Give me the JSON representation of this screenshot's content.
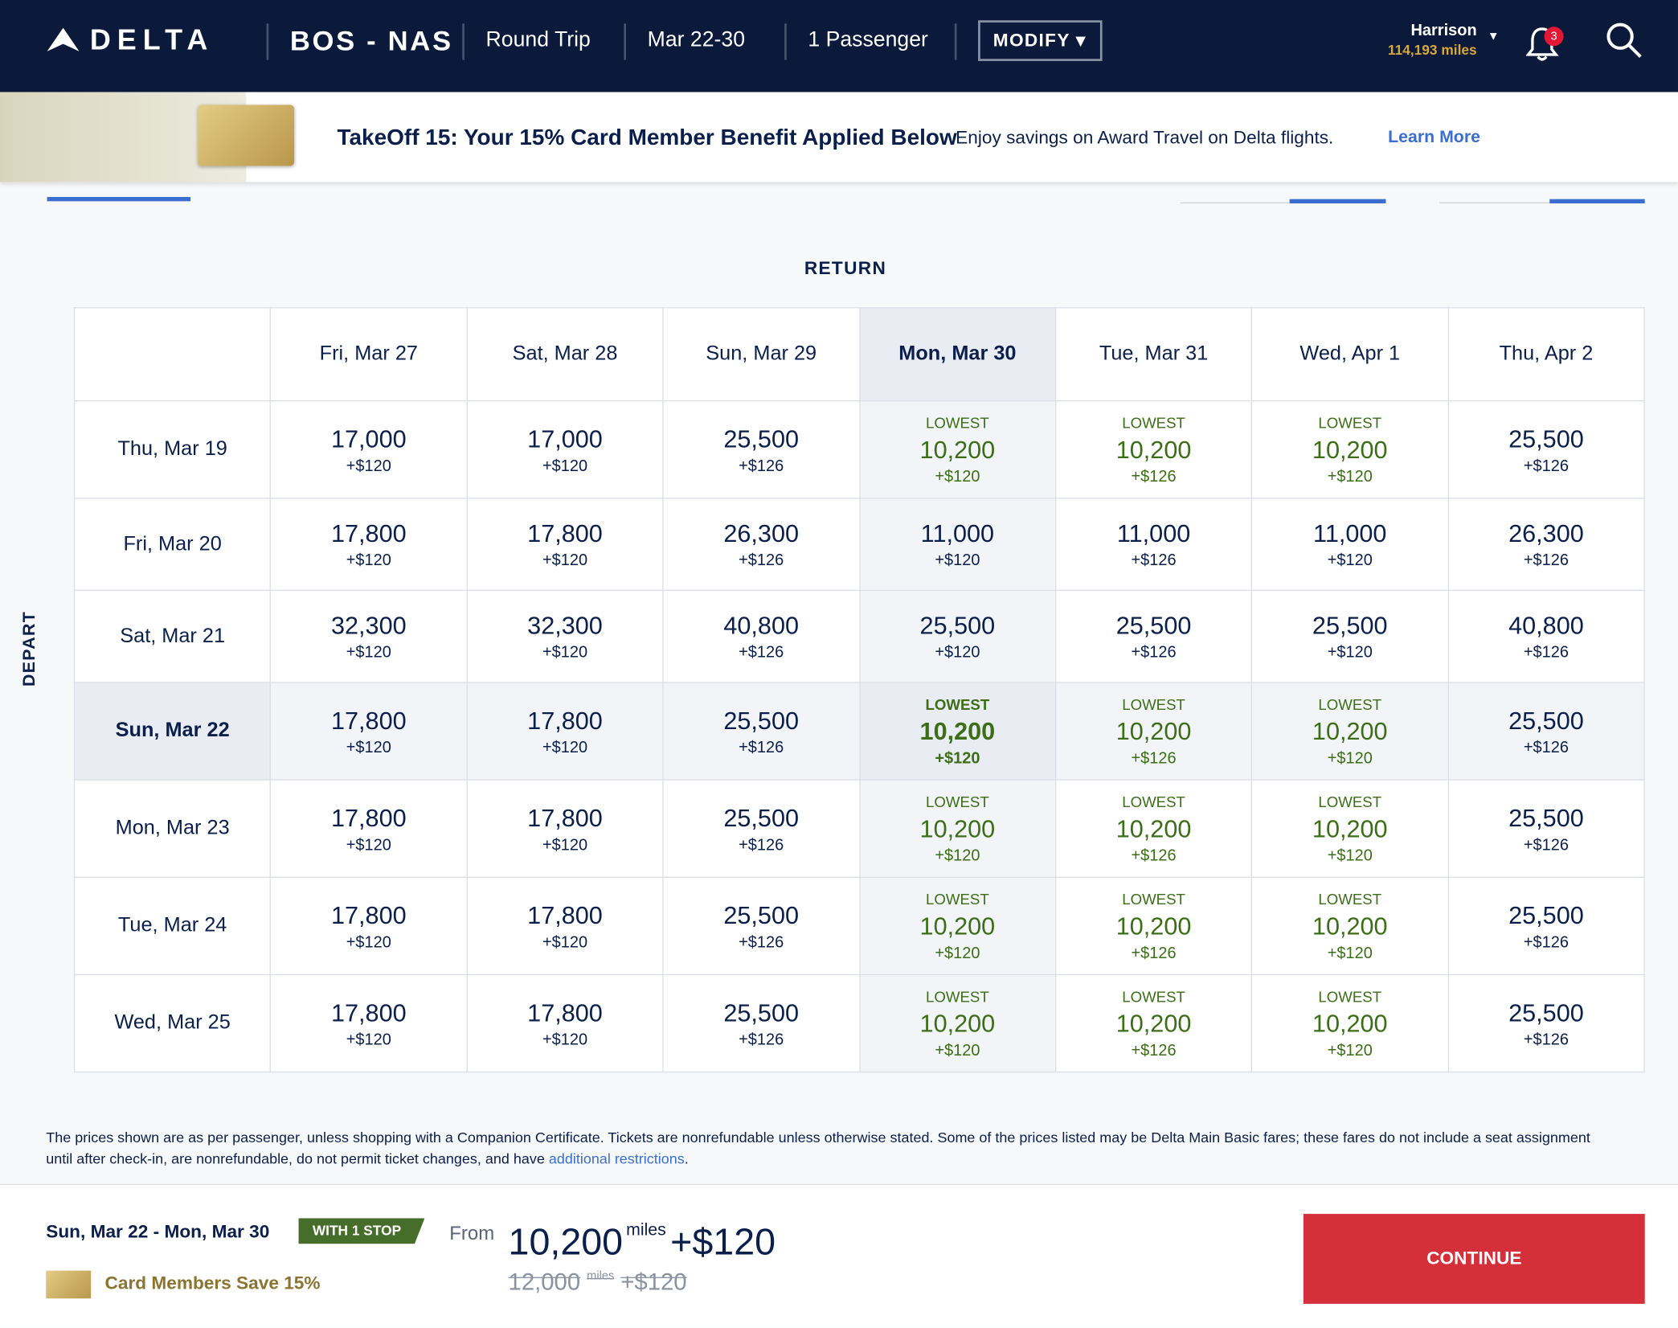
{
  "header": {
    "logo": "DELTA",
    "route": "BOS - NAS",
    "trip": "Round Trip",
    "dates": "Mar 22-30",
    "passengers": "1 Passenger",
    "modify": "MODIFY",
    "user": "Harrison",
    "miles": "114,193 miles",
    "notifications": "3"
  },
  "banner": {
    "title": "TakeOff 15: Your 15% Card Member Benefit Applied Below",
    "text": "Enjoy savings on Award Travel on Delta flights.",
    "link": "Learn More"
  },
  "grid": {
    "return_label": "RETURN",
    "depart_label": "DEPART",
    "columns": [
      {
        "label": "Fri, Mar 27"
      },
      {
        "label": "Sat, Mar 28"
      },
      {
        "label": "Sun, Mar 29"
      },
      {
        "label": "Mon, Mar 30",
        "selected": true
      },
      {
        "label": "Tue, Mar 31"
      },
      {
        "label": "Wed, Apr 1"
      },
      {
        "label": "Thu, Apr 2"
      }
    ],
    "rows": [
      {
        "label": "Thu, Mar 19",
        "cells": [
          {
            "miles": "17,000",
            "fee": "+$120"
          },
          {
            "miles": "17,000",
            "fee": "+$120"
          },
          {
            "miles": "25,500",
            "fee": "+$126"
          },
          {
            "badge": "LOWEST",
            "miles": "10,200",
            "fee": "+$120"
          },
          {
            "badge": "LOWEST",
            "miles": "10,200",
            "fee": "+$126"
          },
          {
            "badge": "LOWEST",
            "miles": "10,200",
            "fee": "+$120"
          },
          {
            "miles": "25,500",
            "fee": "+$126"
          }
        ]
      },
      {
        "label": "Fri, Mar 20",
        "cells": [
          {
            "miles": "17,800",
            "fee": "+$120"
          },
          {
            "miles": "17,800",
            "fee": "+$120"
          },
          {
            "miles": "26,300",
            "fee": "+$126"
          },
          {
            "miles": "11,000",
            "fee": "+$120"
          },
          {
            "miles": "11,000",
            "fee": "+$126"
          },
          {
            "miles": "11,000",
            "fee": "+$120"
          },
          {
            "miles": "26,300",
            "fee": "+$126"
          }
        ]
      },
      {
        "label": "Sat, Mar 21",
        "cells": [
          {
            "miles": "32,300",
            "fee": "+$120"
          },
          {
            "miles": "32,300",
            "fee": "+$120"
          },
          {
            "miles": "40,800",
            "fee": "+$126"
          },
          {
            "miles": "25,500",
            "fee": "+$120"
          },
          {
            "miles": "25,500",
            "fee": "+$126"
          },
          {
            "miles": "25,500",
            "fee": "+$120"
          },
          {
            "miles": "40,800",
            "fee": "+$126"
          }
        ]
      },
      {
        "label": "Sun, Mar 22",
        "selected": true,
        "cells": [
          {
            "miles": "17,800",
            "fee": "+$120"
          },
          {
            "miles": "17,800",
            "fee": "+$120"
          },
          {
            "miles": "25,500",
            "fee": "+$126"
          },
          {
            "badge": "LOWEST",
            "miles": "10,200",
            "fee": "+$120"
          },
          {
            "badge": "LOWEST",
            "miles": "10,200",
            "fee": "+$126"
          },
          {
            "badge": "LOWEST",
            "miles": "10,200",
            "fee": "+$120"
          },
          {
            "miles": "25,500",
            "fee": "+$126"
          }
        ]
      },
      {
        "label": "Mon, Mar 23",
        "cells": [
          {
            "miles": "17,800",
            "fee": "+$120"
          },
          {
            "miles": "17,800",
            "fee": "+$120"
          },
          {
            "miles": "25,500",
            "fee": "+$126"
          },
          {
            "badge": "LOWEST",
            "miles": "10,200",
            "fee": "+$120"
          },
          {
            "badge": "LOWEST",
            "miles": "10,200",
            "fee": "+$126"
          },
          {
            "badge": "LOWEST",
            "miles": "10,200",
            "fee": "+$120"
          },
          {
            "miles": "25,500",
            "fee": "+$126"
          }
        ]
      },
      {
        "label": "Tue, Mar 24",
        "cells": [
          {
            "miles": "17,800",
            "fee": "+$120"
          },
          {
            "miles": "17,800",
            "fee": "+$120"
          },
          {
            "miles": "25,500",
            "fee": "+$126"
          },
          {
            "badge": "LOWEST",
            "miles": "10,200",
            "fee": "+$120"
          },
          {
            "badge": "LOWEST",
            "miles": "10,200",
            "fee": "+$126"
          },
          {
            "badge": "LOWEST",
            "miles": "10,200",
            "fee": "+$120"
          },
          {
            "miles": "25,500",
            "fee": "+$126"
          }
        ]
      },
      {
        "label": "Wed, Mar 25",
        "cells": [
          {
            "miles": "17,800",
            "fee": "+$120"
          },
          {
            "miles": "17,800",
            "fee": "+$120"
          },
          {
            "miles": "25,500",
            "fee": "+$126"
          },
          {
            "badge": "LOWEST",
            "miles": "10,200",
            "fee": "+$120"
          },
          {
            "badge": "LOWEST",
            "miles": "10,200",
            "fee": "+$126"
          },
          {
            "badge": "LOWEST",
            "miles": "10,200",
            "fee": "+$120"
          },
          {
            "miles": "25,500",
            "fee": "+$126"
          }
        ]
      }
    ]
  },
  "footnote": {
    "text": "The prices shown are as per passenger, unless shopping with a Companion Certificate. Tickets are nonrefundable unless otherwise stated. Some of the prices listed may be Delta Main Basic fares; these fares do not include a seat assignment until after check-in, are nonrefundable, do not permit ticket changes, and have ",
    "link": "additional restrictions",
    "end": "."
  },
  "summary": {
    "date_from": "Sun, Mar 22",
    "sep": "-",
    "date_to": "Mon, Mar 30",
    "stops": "WITH 1 STOP",
    "card": "Card Members Save 15%",
    "from": "From",
    "miles": "10,200",
    "miles_unit": "miles",
    "fee": "+$120",
    "old_miles": "12,000",
    "old_unit": "miles",
    "old_fee": "+$120",
    "continue": "CONTINUE"
  }
}
